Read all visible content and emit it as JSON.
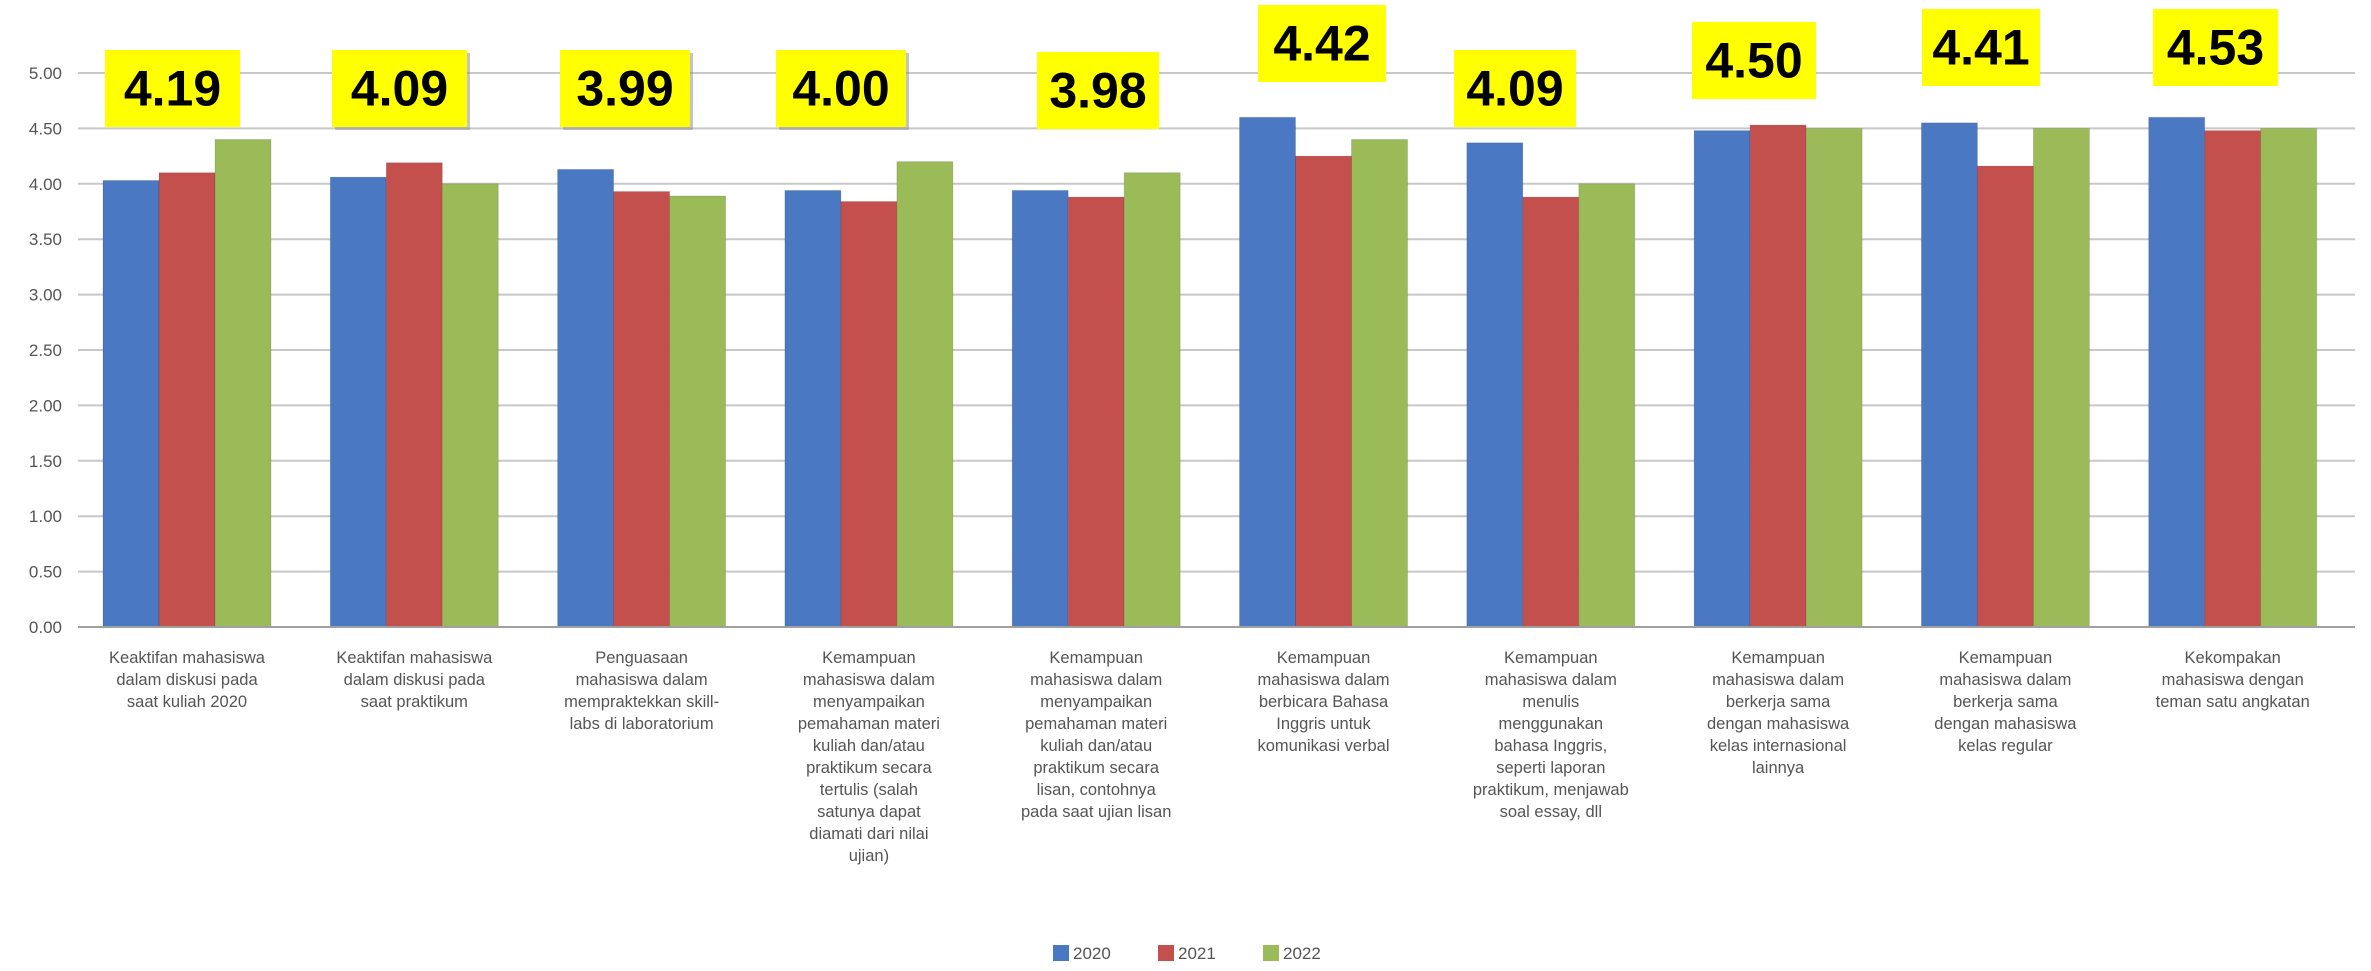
{
  "chart_data": {
    "type": "bar",
    "title": "",
    "xlabel": "",
    "ylabel": "",
    "ylim": [
      0,
      5
    ],
    "yticks": [
      "0.00",
      "0.50",
      "1.00",
      "1.50",
      "2.00",
      "2.50",
      "3.00",
      "3.50",
      "4.00",
      "4.50",
      "5.00"
    ],
    "grid": true,
    "legend_position": "bottom",
    "categories": [
      [
        "Keaktifan mahasiswa",
        "dalam diskusi pada",
        "saat kuliah 2020"
      ],
      [
        "Keaktifan mahasiswa",
        "dalam diskusi pada",
        "saat praktikum"
      ],
      [
        "Penguasaan",
        "mahasiswa dalam",
        "mempraktekkan skill-",
        "labs di laboratorium"
      ],
      [
        "Kemampuan",
        "mahasiswa dalam",
        "menyampaikan",
        "pemahaman materi",
        "kuliah dan/atau",
        "praktikum secara",
        "tertulis (salah",
        "satunya dapat",
        "diamati dari nilai",
        "ujian)"
      ],
      [
        "Kemampuan",
        "mahasiswa dalam",
        "menyampaikan",
        "pemahaman materi",
        "kuliah dan/atau",
        "praktikum secara",
        "lisan, contohnya",
        "pada saat ujian lisan"
      ],
      [
        "Kemampuan",
        "mahasiswa dalam",
        "berbicara Bahasa",
        "Inggris untuk",
        "komunikasi verbal"
      ],
      [
        "Kemampuan",
        "mahasiswa dalam",
        "menulis",
        "menggunakan",
        "bahasa Inggris,",
        "seperti laporan",
        "praktikum, menjawab",
        "soal essay, dll"
      ],
      [
        "Kemampuan",
        "mahasiswa dalam",
        "berkerja sama",
        "dengan mahasiswa",
        "kelas internasional",
        "lainnya"
      ],
      [
        "Kemampuan",
        "mahasiswa dalam",
        "berkerja sama",
        "dengan mahasiswa",
        "kelas regular"
      ],
      [
        "Kekompakan",
        "mahasiswa dengan",
        "teman satu angkatan"
      ]
    ],
    "series": [
      {
        "name": "2020",
        "color": "#4a78c2",
        "values": [
          4.03,
          4.06,
          4.13,
          3.94,
          3.94,
          4.6,
          4.37,
          4.48,
          4.55,
          4.6
        ]
      },
      {
        "name": "2021",
        "color": "#c4504d",
        "values": [
          4.1,
          4.19,
          3.93,
          3.84,
          3.88,
          4.25,
          3.88,
          4.53,
          4.16,
          4.48
        ]
      },
      {
        "name": "2022",
        "color": "#9bbb59",
        "values": [
          4.4,
          4.0,
          3.89,
          4.2,
          4.1,
          4.4,
          4.0,
          4.5,
          4.5,
          4.5
        ]
      }
    ],
    "annotations": [
      {
        "text": "4.19",
        "style": "highlight"
      },
      {
        "text": "4.09",
        "style": "highlight-shadow"
      },
      {
        "text": "3.99",
        "style": "highlight-shadow"
      },
      {
        "text": "4.00",
        "style": "highlight-shadow"
      },
      {
        "text": "3.98",
        "style": "highlight"
      },
      {
        "text": "4.42",
        "style": "highlight"
      },
      {
        "text": "4.09",
        "style": "highlight"
      },
      {
        "text": "4.50",
        "style": "highlight"
      },
      {
        "text": "4.41",
        "style": "highlight"
      },
      {
        "text": "4.53",
        "style": "highlight"
      }
    ],
    "annotation_color": "#ffff00"
  }
}
